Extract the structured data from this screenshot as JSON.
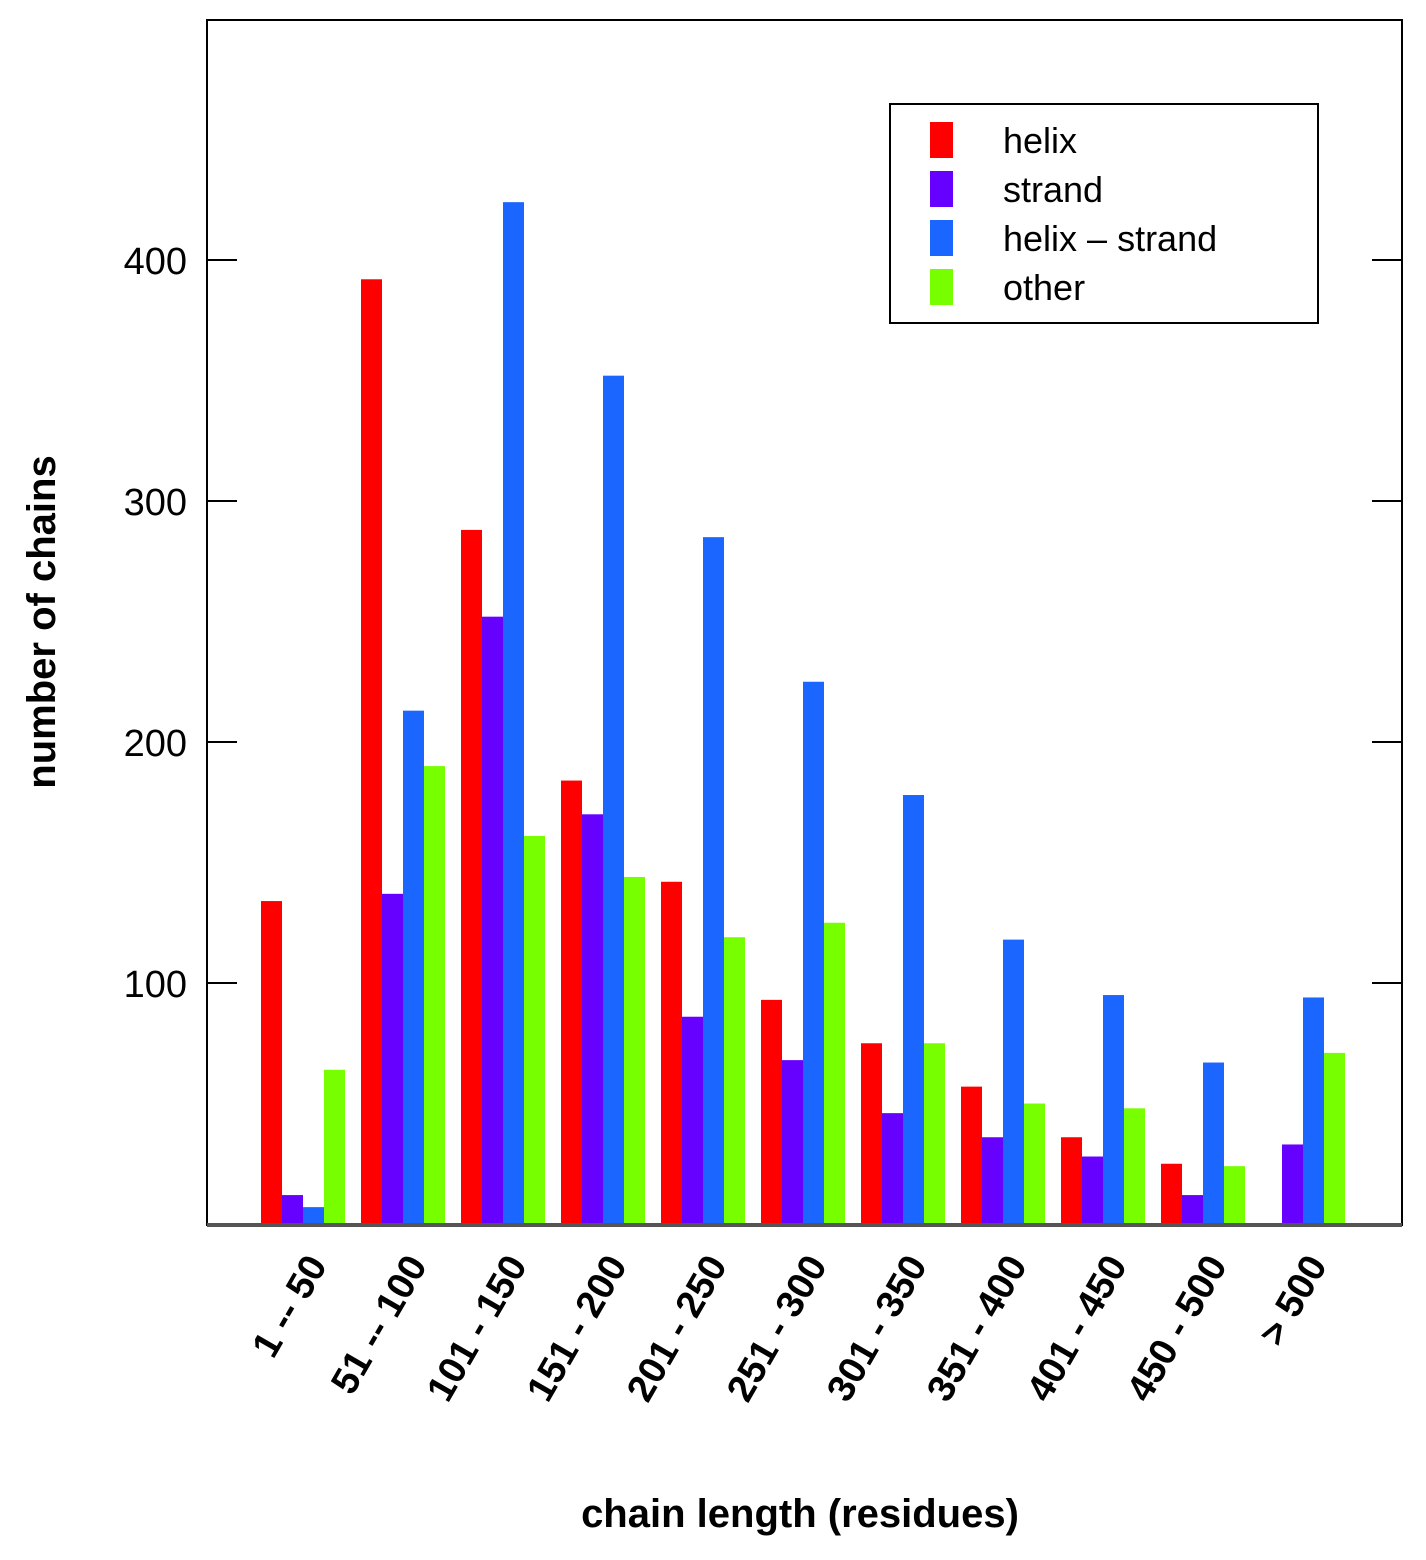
{
  "chart_data": {
    "type": "bar",
    "title": "",
    "xlabel": "chain length (residues)",
    "ylabel": "number of chains",
    "ylim": [
      0,
      500
    ],
    "yticks": [
      100,
      200,
      300,
      400
    ],
    "grid": false,
    "legend_position": "top-right",
    "categories": [
      "1 -- 50",
      "51 -- 100",
      "101 - 150",
      "151 - 200",
      "201 - 250",
      "251 - 300",
      "301 - 350",
      "351 - 400",
      "401 - 450",
      "450 - 500",
      "> 500"
    ],
    "series": [
      {
        "name": "helix",
        "color": "#ff0000",
        "values": [
          134,
          392,
          288,
          184,
          142,
          93,
          75,
          57,
          36,
          25,
          0
        ]
      },
      {
        "name": "strand",
        "color": "#6600ff",
        "values": [
          12,
          137,
          252,
          170,
          86,
          68,
          46,
          36,
          28,
          12,
          33
        ]
      },
      {
        "name": "helix – strand",
        "color": "#1a66ff",
        "values": [
          7,
          213,
          424,
          352,
          285,
          225,
          178,
          118,
          95,
          67,
          94
        ]
      },
      {
        "name": "other",
        "color": "#77ff00",
        "values": [
          64,
          190,
          161,
          144,
          119,
          125,
          75,
          50,
          48,
          24,
          71
        ]
      }
    ]
  }
}
